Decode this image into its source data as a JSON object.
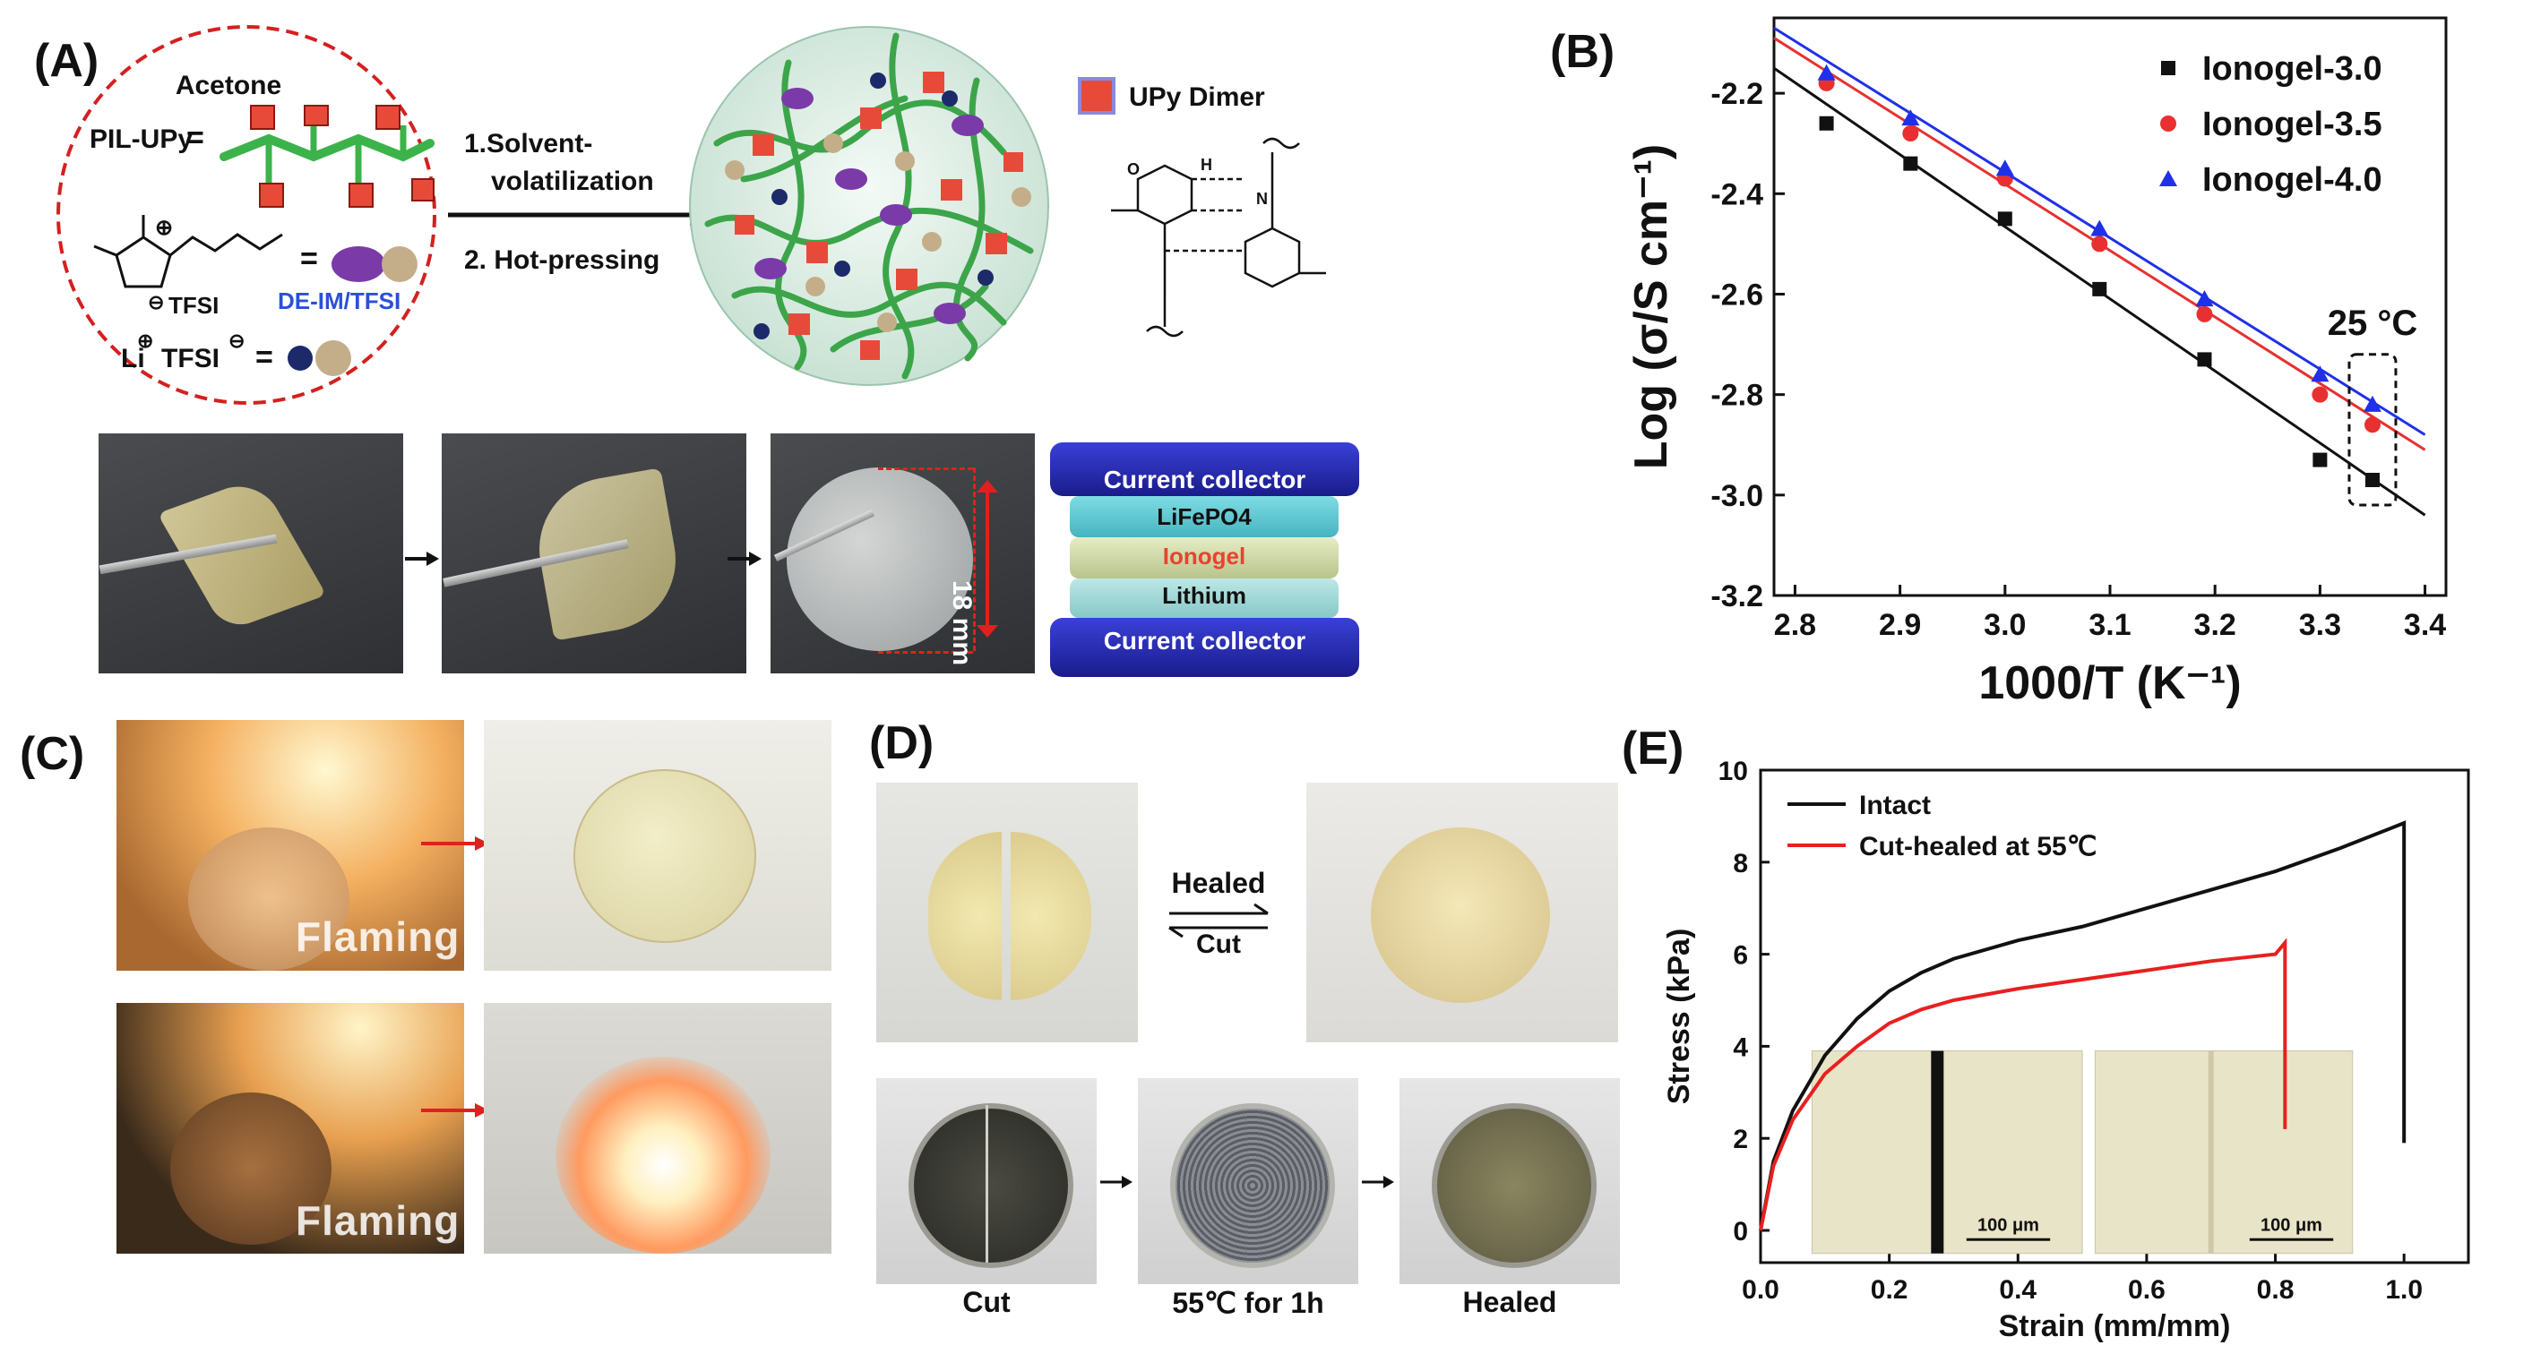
{
  "panels": {
    "a": "(A)",
    "b": "(B)",
    "c": "(C)",
    "d": "(D)",
    "e": "(E)"
  },
  "scheme": {
    "acetone": "Acetone",
    "pil_upy": "PIL-UPy",
    "tfsi_anion": "TFSI",
    "de_im_tfsi": "DE-IM/TFSI",
    "li_tfsi_li": "Li",
    "li_tfsi_tfsi": "TFSI",
    "step1_line1": "1.Solvent-",
    "step1_line2": "volatilization",
    "step2": "2. Hot-pressing",
    "upy_dimer": "UPy Dimer",
    "dimension": "18 mm"
  },
  "cell_stack": {
    "layers": [
      "Current collector",
      "LiFePO4",
      "Ionogel",
      "Lithium",
      "Current collector"
    ],
    "ionogel_color": "#e8432e"
  },
  "panel_c": {
    "label_top": "Flaming",
    "label_bottom": "Flaming"
  },
  "panel_d": {
    "healed": "Healed",
    "cut": "Cut",
    "bottom_captions": [
      "Cut",
      "55℃ for 1h",
      "Healed"
    ]
  },
  "chart_data": [
    {
      "type": "scatter",
      "xlabel": "1000/T (K⁻¹)",
      "ylabel": "Log (σ/S cm⁻¹)",
      "xlim": [
        2.78,
        3.42
      ],
      "ylim": [
        -3.2,
        -2.05
      ],
      "x_ticks": [
        "2.8",
        "2.9",
        "3.0",
        "3.1",
        "3.2",
        "3.3",
        "3.4"
      ],
      "y_ticks": [
        "-2.2",
        "-2.4",
        "-2.6",
        "-2.8",
        "-3.0",
        "-3.2"
      ],
      "annotation": "25 °C",
      "legend_position": "top-right",
      "series": [
        {
          "name": "Ionogel-3.0",
          "color": "#111111",
          "marker": "square",
          "x": [
            2.83,
            2.91,
            3.0,
            3.09,
            3.19,
            3.3,
            3.35
          ],
          "y": [
            -2.26,
            -2.34,
            -2.45,
            -2.59,
            -2.73,
            -2.93,
            -2.97
          ],
          "fit": [
            [
              2.78,
              -2.15
            ],
            [
              3.4,
              -3.04
            ]
          ]
        },
        {
          "name": "Ionogel-3.5",
          "color": "#e83030",
          "marker": "circle",
          "x": [
            2.83,
            2.91,
            3.0,
            3.09,
            3.19,
            3.3,
            3.35
          ],
          "y": [
            -2.18,
            -2.28,
            -2.37,
            -2.5,
            -2.64,
            -2.8,
            -2.86
          ],
          "fit": [
            [
              2.78,
              -2.09
            ],
            [
              3.4,
              -2.91
            ]
          ]
        },
        {
          "name": "Ionogel-4.0",
          "color": "#2030e8",
          "marker": "triangle",
          "x": [
            2.83,
            2.91,
            3.0,
            3.09,
            3.19,
            3.3,
            3.35
          ],
          "y": [
            -2.16,
            -2.25,
            -2.35,
            -2.47,
            -2.61,
            -2.76,
            -2.82
          ],
          "fit": [
            [
              2.78,
              -2.07
            ],
            [
              3.4,
              -2.88
            ]
          ]
        }
      ]
    },
    {
      "type": "line",
      "xlabel": "Strain (mm/mm)",
      "ylabel": "Stress (kPa)",
      "xlim": [
        0,
        1.1
      ],
      "ylim": [
        -0.7,
        10
      ],
      "x_ticks": [
        "0.0",
        "0.2",
        "0.4",
        "0.6",
        "0.8",
        "1.0"
      ],
      "y_ticks": [
        "0",
        "2",
        "4",
        "6",
        "8",
        "10"
      ],
      "legend_position": "top-left",
      "scale_bar": "100 μm",
      "series": [
        {
          "name": "Intact",
          "color": "#111111",
          "x": [
            0,
            0.02,
            0.05,
            0.1,
            0.15,
            0.2,
            0.25,
            0.3,
            0.4,
            0.5,
            0.6,
            0.7,
            0.8,
            0.9,
            1.0,
            1.0
          ],
          "y": [
            0,
            1.5,
            2.6,
            3.8,
            4.6,
            5.2,
            5.6,
            5.9,
            6.3,
            6.6,
            7.0,
            7.4,
            7.8,
            8.3,
            8.85,
            1.9
          ]
        },
        {
          "name": "Cut-healed at 55℃",
          "color": "#e82020",
          "x": [
            0,
            0.02,
            0.05,
            0.1,
            0.15,
            0.2,
            0.25,
            0.3,
            0.4,
            0.5,
            0.6,
            0.7,
            0.8,
            0.815,
            0.815
          ],
          "y": [
            0,
            1.4,
            2.4,
            3.4,
            4.0,
            4.5,
            4.8,
            5.0,
            5.25,
            5.45,
            5.65,
            5.85,
            6.0,
            6.25,
            2.2
          ]
        }
      ]
    }
  ]
}
